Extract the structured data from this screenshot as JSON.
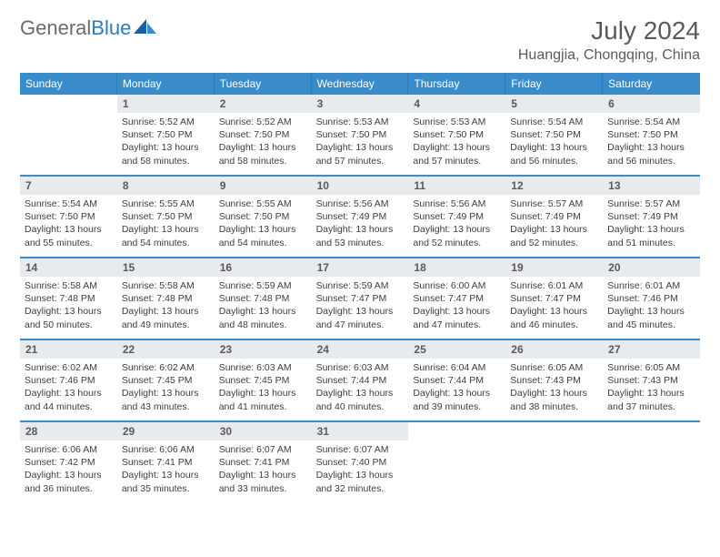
{
  "brand": {
    "text1": "General",
    "text2": "Blue"
  },
  "title": "July 2024",
  "location": "Huangjia, Chongqing, China",
  "colors": {
    "header_bg": "#3a8bca",
    "header_text": "#ffffff",
    "daynum_bg": "#e8ebed",
    "body_text": "#3d3d3d",
    "brand_gray": "#6b6b6b",
    "brand_blue": "#2b7bbf",
    "divider": "#3a8bca"
  },
  "weekdays": [
    "Sunday",
    "Monday",
    "Tuesday",
    "Wednesday",
    "Thursday",
    "Friday",
    "Saturday"
  ],
  "start_offset": 1,
  "days": [
    {
      "n": 1,
      "sunrise": "5:52 AM",
      "sunset": "7:50 PM",
      "daylight": "13 hours and 58 minutes."
    },
    {
      "n": 2,
      "sunrise": "5:52 AM",
      "sunset": "7:50 PM",
      "daylight": "13 hours and 58 minutes."
    },
    {
      "n": 3,
      "sunrise": "5:53 AM",
      "sunset": "7:50 PM",
      "daylight": "13 hours and 57 minutes."
    },
    {
      "n": 4,
      "sunrise": "5:53 AM",
      "sunset": "7:50 PM",
      "daylight": "13 hours and 57 minutes."
    },
    {
      "n": 5,
      "sunrise": "5:54 AM",
      "sunset": "7:50 PM",
      "daylight": "13 hours and 56 minutes."
    },
    {
      "n": 6,
      "sunrise": "5:54 AM",
      "sunset": "7:50 PM",
      "daylight": "13 hours and 56 minutes."
    },
    {
      "n": 7,
      "sunrise": "5:54 AM",
      "sunset": "7:50 PM",
      "daylight": "13 hours and 55 minutes."
    },
    {
      "n": 8,
      "sunrise": "5:55 AM",
      "sunset": "7:50 PM",
      "daylight": "13 hours and 54 minutes."
    },
    {
      "n": 9,
      "sunrise": "5:55 AM",
      "sunset": "7:50 PM",
      "daylight": "13 hours and 54 minutes."
    },
    {
      "n": 10,
      "sunrise": "5:56 AM",
      "sunset": "7:49 PM",
      "daylight": "13 hours and 53 minutes."
    },
    {
      "n": 11,
      "sunrise": "5:56 AM",
      "sunset": "7:49 PM",
      "daylight": "13 hours and 52 minutes."
    },
    {
      "n": 12,
      "sunrise": "5:57 AM",
      "sunset": "7:49 PM",
      "daylight": "13 hours and 52 minutes."
    },
    {
      "n": 13,
      "sunrise": "5:57 AM",
      "sunset": "7:49 PM",
      "daylight": "13 hours and 51 minutes."
    },
    {
      "n": 14,
      "sunrise": "5:58 AM",
      "sunset": "7:48 PM",
      "daylight": "13 hours and 50 minutes."
    },
    {
      "n": 15,
      "sunrise": "5:58 AM",
      "sunset": "7:48 PM",
      "daylight": "13 hours and 49 minutes."
    },
    {
      "n": 16,
      "sunrise": "5:59 AM",
      "sunset": "7:48 PM",
      "daylight": "13 hours and 48 minutes."
    },
    {
      "n": 17,
      "sunrise": "5:59 AM",
      "sunset": "7:47 PM",
      "daylight": "13 hours and 47 minutes."
    },
    {
      "n": 18,
      "sunrise": "6:00 AM",
      "sunset": "7:47 PM",
      "daylight": "13 hours and 47 minutes."
    },
    {
      "n": 19,
      "sunrise": "6:01 AM",
      "sunset": "7:47 PM",
      "daylight": "13 hours and 46 minutes."
    },
    {
      "n": 20,
      "sunrise": "6:01 AM",
      "sunset": "7:46 PM",
      "daylight": "13 hours and 45 minutes."
    },
    {
      "n": 21,
      "sunrise": "6:02 AM",
      "sunset": "7:46 PM",
      "daylight": "13 hours and 44 minutes."
    },
    {
      "n": 22,
      "sunrise": "6:02 AM",
      "sunset": "7:45 PM",
      "daylight": "13 hours and 43 minutes."
    },
    {
      "n": 23,
      "sunrise": "6:03 AM",
      "sunset": "7:45 PM",
      "daylight": "13 hours and 41 minutes."
    },
    {
      "n": 24,
      "sunrise": "6:03 AM",
      "sunset": "7:44 PM",
      "daylight": "13 hours and 40 minutes."
    },
    {
      "n": 25,
      "sunrise": "6:04 AM",
      "sunset": "7:44 PM",
      "daylight": "13 hours and 39 minutes."
    },
    {
      "n": 26,
      "sunrise": "6:05 AM",
      "sunset": "7:43 PM",
      "daylight": "13 hours and 38 minutes."
    },
    {
      "n": 27,
      "sunrise": "6:05 AM",
      "sunset": "7:43 PM",
      "daylight": "13 hours and 37 minutes."
    },
    {
      "n": 28,
      "sunrise": "6:06 AM",
      "sunset": "7:42 PM",
      "daylight": "13 hours and 36 minutes."
    },
    {
      "n": 29,
      "sunrise": "6:06 AM",
      "sunset": "7:41 PM",
      "daylight": "13 hours and 35 minutes."
    },
    {
      "n": 30,
      "sunrise": "6:07 AM",
      "sunset": "7:41 PM",
      "daylight": "13 hours and 33 minutes."
    },
    {
      "n": 31,
      "sunrise": "6:07 AM",
      "sunset": "7:40 PM",
      "daylight": "13 hours and 32 minutes."
    }
  ],
  "labels": {
    "sunrise": "Sunrise:",
    "sunset": "Sunset:",
    "daylight": "Daylight:"
  }
}
